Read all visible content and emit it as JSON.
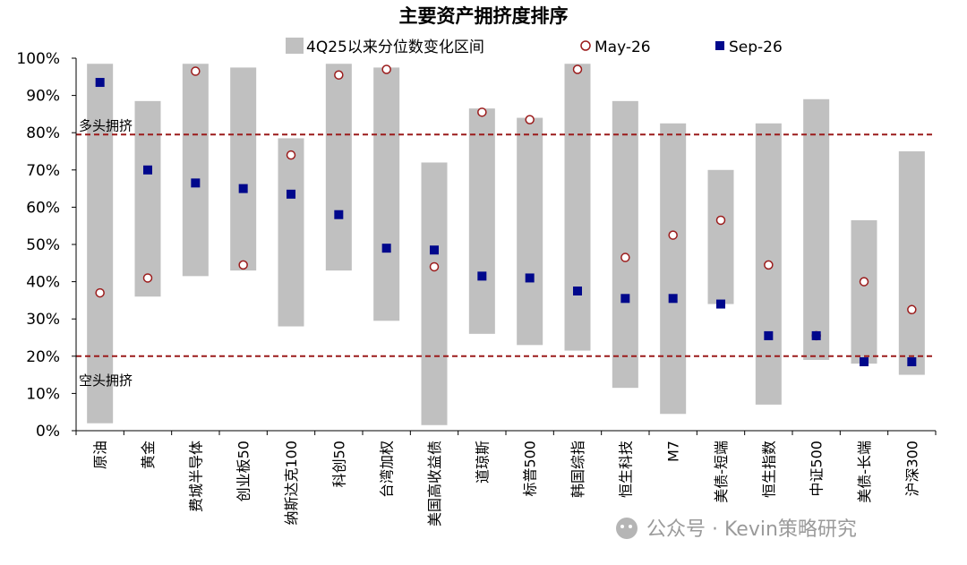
{
  "chart_data": {
    "type": "range-bar",
    "title": "主要资产拥挤度排序",
    "ylim": [
      0,
      100
    ],
    "yticks": [
      "0%",
      "10%",
      "20%",
      "30%",
      "40%",
      "50%",
      "60%",
      "70%",
      "80%",
      "90%",
      "100%"
    ],
    "categories": [
      "原油",
      "黄金",
      "费城半导体",
      "创业板50",
      "纳斯达克100",
      "科创50",
      "台湾加权",
      "美国高收益债",
      "道琼斯",
      "标普500",
      "韩国综指",
      "恒生科技",
      "M7",
      "美债-短端",
      "恒生指数",
      "中证500",
      "美债-长端",
      "沪深300"
    ],
    "series": [
      {
        "name": "4Q25以来分位数变化区间",
        "kind": "range",
        "low": [
          2,
          36,
          41.5,
          43,
          28,
          43,
          29.5,
          1.5,
          26,
          23,
          21.5,
          11.5,
          4.5,
          34,
          7,
          19,
          18,
          15
        ],
        "high": [
          98.5,
          88.5,
          98.5,
          97.5,
          78.5,
          98.5,
          97.5,
          72,
          86.5,
          84,
          98.5,
          88.5,
          82.5,
          70,
          82.5,
          89,
          56.5,
          75
        ]
      },
      {
        "name": "May-26",
        "kind": "marker-circle",
        "values": [
          37,
          41,
          96.5,
          44.5,
          74,
          95.5,
          97,
          44,
          85.5,
          83.5,
          97,
          46.5,
          52.5,
          56.5,
          44.5,
          25.5,
          40,
          32.5
        ]
      },
      {
        "name": "Sep-26",
        "kind": "marker-square",
        "values": [
          93.5,
          70,
          66.5,
          65,
          63.5,
          58,
          49,
          48.5,
          41.5,
          41,
          37.5,
          35.5,
          35.5,
          34,
          25.5,
          25.5,
          18.5,
          18.5
        ]
      }
    ],
    "reference_lines": [
      {
        "y": 79.5,
        "label": "多头拥挤",
        "style": "dashed"
      },
      {
        "y": 20,
        "label": "空头拥挤",
        "style": "dashed"
      }
    ],
    "grid": false,
    "legend_position": "top"
  },
  "colors": {
    "range": "#c0c0c0",
    "may_stroke": "#9b1b1b",
    "sep_fill": "#00088c",
    "ref_line": "#9b1b1b",
    "axis": "#000000"
  },
  "watermark": "公众号 · Kevin策略研究"
}
